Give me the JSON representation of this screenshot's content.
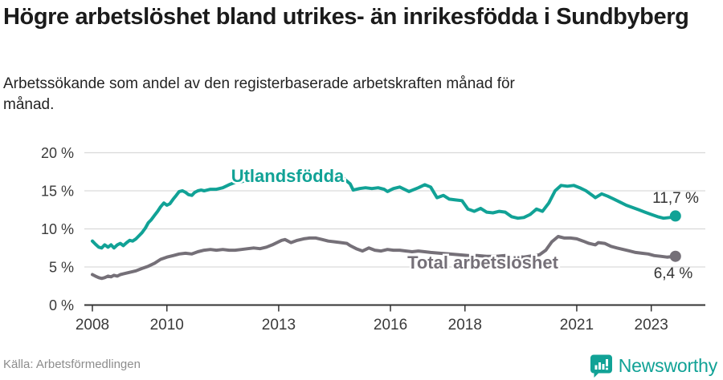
{
  "header": {
    "title": "Högre arbetslöshet bland utrikes- än inrikesfödda i Sundbyberg",
    "subtitle": "Arbetssökande som andel av den registerbaserade arbetskraften månad för månad."
  },
  "footer": {
    "source": "Källa: Arbetsförmedlingen",
    "brand": "Newsworthy",
    "brand_icon": "bar-chart-speech-bubble-icon"
  },
  "colors": {
    "teal": "#11a296",
    "gray": "#757078",
    "grid": "#d9d9d9",
    "axis": "#333333",
    "tick_text": "#3a3a3a",
    "value_text": "#333333",
    "title_text": "#1b1b1b",
    "source_text": "#8d8d8d"
  },
  "chart_data": {
    "type": "line",
    "title": "Högre arbetslöshet bland utrikes- än inrikesfödda i Sundbyberg",
    "xlabel": "",
    "ylabel": "Arbetssökande som andel av den registerbaserade arbetskraften",
    "unit": "%",
    "ylim": [
      0,
      20
    ],
    "x_range": [
      2008,
      2023.65
    ],
    "grid": "horizontal",
    "legend_position": "inline-labels",
    "y_ticks": [
      {
        "value": 0,
        "label": "0 %"
      },
      {
        "value": 5,
        "label": "5 %"
      },
      {
        "value": 10,
        "label": "10 %"
      },
      {
        "value": 15,
        "label": "15 %"
      },
      {
        "value": 20,
        "label": "20 %"
      }
    ],
    "x_ticks": [
      {
        "value": 2008,
        "label": "2008"
      },
      {
        "value": 2010,
        "label": "2010"
      },
      {
        "value": 2013,
        "label": "2013"
      },
      {
        "value": 2016,
        "label": "2016"
      },
      {
        "value": 2018,
        "label": "2018"
      },
      {
        "value": 2021,
        "label": "2021"
      },
      {
        "value": 2023,
        "label": "2023"
      }
    ],
    "series": [
      {
        "key": "utlandsfodda",
        "name": "Utlandsfödda",
        "color": "#11a296",
        "end_value": 11.7,
        "end_label": "11,7 %",
        "points": [
          [
            2008.0,
            8.4
          ],
          [
            2008.08,
            8.0
          ],
          [
            2008.17,
            7.6
          ],
          [
            2008.25,
            7.5
          ],
          [
            2008.33,
            7.9
          ],
          [
            2008.42,
            7.6
          ],
          [
            2008.5,
            7.9
          ],
          [
            2008.58,
            7.5
          ],
          [
            2008.67,
            7.9
          ],
          [
            2008.75,
            8.1
          ],
          [
            2008.83,
            7.8
          ],
          [
            2008.92,
            8.2
          ],
          [
            2009.0,
            8.5
          ],
          [
            2009.08,
            8.4
          ],
          [
            2009.17,
            8.7
          ],
          [
            2009.25,
            9.1
          ],
          [
            2009.33,
            9.5
          ],
          [
            2009.42,
            10.1
          ],
          [
            2009.5,
            10.8
          ],
          [
            2009.58,
            11.2
          ],
          [
            2009.67,
            11.8
          ],
          [
            2009.75,
            12.3
          ],
          [
            2009.83,
            12.9
          ],
          [
            2009.92,
            13.4
          ],
          [
            2010.0,
            13.1
          ],
          [
            2010.08,
            13.3
          ],
          [
            2010.17,
            13.9
          ],
          [
            2010.25,
            14.4
          ],
          [
            2010.33,
            14.9
          ],
          [
            2010.42,
            15.0
          ],
          [
            2010.5,
            14.8
          ],
          [
            2010.58,
            14.5
          ],
          [
            2010.67,
            14.4
          ],
          [
            2010.75,
            14.8
          ],
          [
            2010.83,
            15.0
          ],
          [
            2010.92,
            15.1
          ],
          [
            2011.0,
            15.0
          ],
          [
            2011.17,
            15.2
          ],
          [
            2011.33,
            15.2
          ],
          [
            2011.5,
            15.4
          ],
          [
            2011.67,
            15.8
          ],
          [
            2011.83,
            16.1
          ],
          [
            2012.0,
            16.2
          ],
          [
            2012.25,
            16.5
          ],
          [
            2012.5,
            16.4
          ],
          [
            2012.75,
            16.6
          ],
          [
            2013.0,
            16.6
          ],
          [
            2013.25,
            16.8
          ],
          [
            2013.5,
            16.9
          ],
          [
            2013.75,
            16.8
          ],
          [
            2014.0,
            16.9
          ],
          [
            2014.25,
            16.7
          ],
          [
            2014.5,
            16.8
          ],
          [
            2014.75,
            16.6
          ],
          [
            2014.92,
            15.9
          ],
          [
            2015.0,
            15.1
          ],
          [
            2015.17,
            15.3
          ],
          [
            2015.33,
            15.4
          ],
          [
            2015.5,
            15.3
          ],
          [
            2015.67,
            15.4
          ],
          [
            2015.83,
            15.2
          ],
          [
            2015.92,
            14.9
          ],
          [
            2016.08,
            15.3
          ],
          [
            2016.25,
            15.5
          ],
          [
            2016.5,
            14.9
          ],
          [
            2016.75,
            15.4
          ],
          [
            2016.92,
            15.8
          ],
          [
            2017.08,
            15.5
          ],
          [
            2017.25,
            14.1
          ],
          [
            2017.42,
            14.4
          ],
          [
            2017.58,
            13.9
          ],
          [
            2017.75,
            13.8
          ],
          [
            2017.92,
            13.7
          ],
          [
            2018.08,
            12.6
          ],
          [
            2018.25,
            12.3
          ],
          [
            2018.42,
            12.7
          ],
          [
            2018.58,
            12.2
          ],
          [
            2018.75,
            12.1
          ],
          [
            2018.92,
            12.3
          ],
          [
            2019.08,
            12.2
          ],
          [
            2019.25,
            11.6
          ],
          [
            2019.42,
            11.4
          ],
          [
            2019.58,
            11.5
          ],
          [
            2019.75,
            11.9
          ],
          [
            2019.92,
            12.6
          ],
          [
            2020.08,
            12.3
          ],
          [
            2020.25,
            13.4
          ],
          [
            2020.42,
            15.0
          ],
          [
            2020.58,
            15.7
          ],
          [
            2020.75,
            15.6
          ],
          [
            2020.92,
            15.7
          ],
          [
            2021.08,
            15.4
          ],
          [
            2021.25,
            15.0
          ],
          [
            2021.42,
            14.4
          ],
          [
            2021.5,
            14.1
          ],
          [
            2021.67,
            14.6
          ],
          [
            2021.83,
            14.3
          ],
          [
            2022.0,
            13.9
          ],
          [
            2022.17,
            13.5
          ],
          [
            2022.33,
            13.1
          ],
          [
            2022.5,
            12.8
          ],
          [
            2022.67,
            12.5
          ],
          [
            2022.83,
            12.2
          ],
          [
            2023.0,
            11.9
          ],
          [
            2023.17,
            11.6
          ],
          [
            2023.33,
            11.4
          ],
          [
            2023.5,
            11.5
          ],
          [
            2023.65,
            11.7
          ]
        ]
      },
      {
        "key": "total-arbetsloshet",
        "name": "Total arbetslöshet",
        "color": "#757078",
        "end_value": 6.4,
        "end_label": "6,4 %",
        "points": [
          [
            2008.0,
            4.0
          ],
          [
            2008.08,
            3.8
          ],
          [
            2008.17,
            3.6
          ],
          [
            2008.25,
            3.5
          ],
          [
            2008.33,
            3.6
          ],
          [
            2008.42,
            3.8
          ],
          [
            2008.5,
            3.7
          ],
          [
            2008.58,
            3.9
          ],
          [
            2008.67,
            3.8
          ],
          [
            2008.75,
            4.0
          ],
          [
            2008.83,
            4.1
          ],
          [
            2008.92,
            4.2
          ],
          [
            2009.0,
            4.3
          ],
          [
            2009.17,
            4.5
          ],
          [
            2009.33,
            4.8
          ],
          [
            2009.5,
            5.1
          ],
          [
            2009.67,
            5.5
          ],
          [
            2009.83,
            6.0
          ],
          [
            2010.0,
            6.3
          ],
          [
            2010.17,
            6.5
          ],
          [
            2010.33,
            6.7
          ],
          [
            2010.5,
            6.8
          ],
          [
            2010.67,
            6.7
          ],
          [
            2010.83,
            7.0
          ],
          [
            2011.0,
            7.2
          ],
          [
            2011.17,
            7.3
          ],
          [
            2011.33,
            7.2
          ],
          [
            2011.5,
            7.3
          ],
          [
            2011.67,
            7.2
          ],
          [
            2011.83,
            7.2
          ],
          [
            2012.0,
            7.3
          ],
          [
            2012.17,
            7.4
          ],
          [
            2012.33,
            7.5
          ],
          [
            2012.5,
            7.4
          ],
          [
            2012.67,
            7.6
          ],
          [
            2012.83,
            7.9
          ],
          [
            2013.0,
            8.3
          ],
          [
            2013.08,
            8.5
          ],
          [
            2013.17,
            8.6
          ],
          [
            2013.33,
            8.2
          ],
          [
            2013.5,
            8.5
          ],
          [
            2013.67,
            8.7
          ],
          [
            2013.83,
            8.8
          ],
          [
            2014.0,
            8.8
          ],
          [
            2014.17,
            8.6
          ],
          [
            2014.33,
            8.4
          ],
          [
            2014.5,
            8.3
          ],
          [
            2014.67,
            8.2
          ],
          [
            2014.83,
            8.1
          ],
          [
            2014.92,
            7.8
          ],
          [
            2015.08,
            7.4
          ],
          [
            2015.25,
            7.1
          ],
          [
            2015.42,
            7.5
          ],
          [
            2015.58,
            7.2
          ],
          [
            2015.75,
            7.1
          ],
          [
            2015.92,
            7.3
          ],
          [
            2016.08,
            7.2
          ],
          [
            2016.25,
            7.2
          ],
          [
            2016.42,
            7.1
          ],
          [
            2016.58,
            7.0
          ],
          [
            2016.75,
            7.1
          ],
          [
            2016.92,
            7.0
          ],
          [
            2017.08,
            6.9
          ],
          [
            2017.33,
            6.8
          ],
          [
            2017.58,
            6.7
          ],
          [
            2017.83,
            6.6
          ],
          [
            2018.08,
            6.5
          ],
          [
            2018.33,
            6.5
          ],
          [
            2018.58,
            6.4
          ],
          [
            2018.83,
            6.4
          ],
          [
            2019.08,
            6.5
          ],
          [
            2019.33,
            6.4
          ],
          [
            2019.58,
            6.3
          ],
          [
            2019.83,
            6.5
          ],
          [
            2020.0,
            6.6
          ],
          [
            2020.17,
            7.2
          ],
          [
            2020.33,
            8.3
          ],
          [
            2020.5,
            9.0
          ],
          [
            2020.67,
            8.8
          ],
          [
            2020.83,
            8.8
          ],
          [
            2021.0,
            8.7
          ],
          [
            2021.17,
            8.4
          ],
          [
            2021.33,
            8.1
          ],
          [
            2021.5,
            7.9
          ],
          [
            2021.58,
            8.2
          ],
          [
            2021.75,
            8.1
          ],
          [
            2021.92,
            7.7
          ],
          [
            2022.08,
            7.5
          ],
          [
            2022.25,
            7.3
          ],
          [
            2022.42,
            7.1
          ],
          [
            2022.58,
            6.9
          ],
          [
            2022.75,
            6.8
          ],
          [
            2022.92,
            6.7
          ],
          [
            2023.08,
            6.5
          ],
          [
            2023.25,
            6.4
          ],
          [
            2023.42,
            6.3
          ],
          [
            2023.65,
            6.4
          ]
        ]
      }
    ]
  }
}
